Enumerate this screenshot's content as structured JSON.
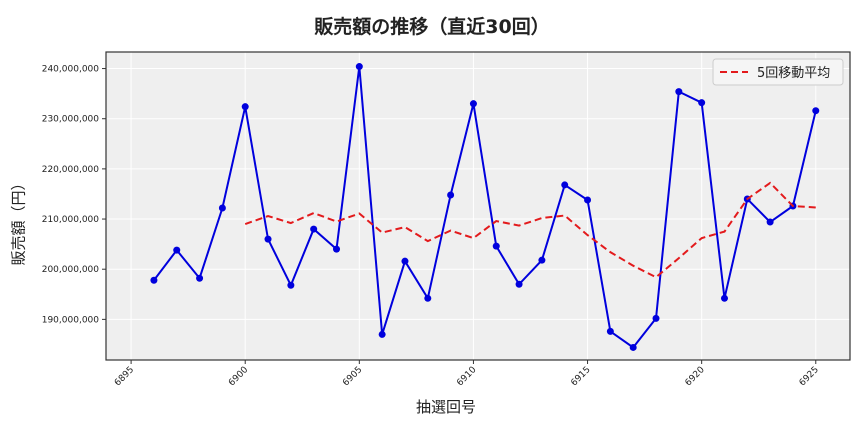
{
  "chart_data": {
    "type": "line",
    "title": "販売額の推移（直近30回）",
    "xlabel": "抽選回号",
    "ylabel": "販売額（円）",
    "x": [
      6896,
      6897,
      6898,
      6899,
      6900,
      6901,
      6902,
      6903,
      6904,
      6905,
      6906,
      6907,
      6908,
      6909,
      6910,
      6911,
      6912,
      6913,
      6914,
      6915,
      6916,
      6917,
      6918,
      6919,
      6920,
      6921,
      6922,
      6923,
      6924,
      6925
    ],
    "series": [
      {
        "name": "販売額",
        "color": "#0000dd",
        "style": "solid-marker",
        "values": [
          197800000,
          203800000,
          198200000,
          212200000,
          232400000,
          206000000,
          196800000,
          208000000,
          204000000,
          240400000,
          187000000,
          201600000,
          194200000,
          214800000,
          233000000,
          204600000,
          197000000,
          201800000,
          216800000,
          213800000,
          187600000,
          184400000,
          190200000,
          235400000,
          233200000,
          194200000,
          214000000,
          209400000,
          212600000,
          231600000
        ]
      },
      {
        "name": "5回移動平均",
        "color": "#e31a1c",
        "style": "dashed",
        "x_start": 6900,
        "values": [
          209000000,
          210600000,
          209200000,
          211200000,
          209500000,
          211100000,
          207300000,
          208400000,
          205600000,
          207700000,
          206200000,
          209600000,
          208700000,
          210200000,
          210700000,
          206800000,
          203400000,
          200700000,
          198400000,
          202200000,
          206200000,
          207500000,
          214000000,
          217200000,
          212600000,
          212300000
        ]
      }
    ],
    "xticks": [
      "6895",
      "6900",
      "6905",
      "6910",
      "6915",
      "6920",
      "6925"
    ],
    "yticks": [
      "190,000,000",
      "200,000,000",
      "210,000,000",
      "220,000,000",
      "230,000,000",
      "240,000,000"
    ],
    "xlim": [
      6893.9,
      6926.5
    ],
    "ylim": [
      181900000,
      243300000
    ],
    "grid": true,
    "legend": {
      "position": "upper right",
      "entries": [
        "5回移動平均"
      ]
    }
  }
}
